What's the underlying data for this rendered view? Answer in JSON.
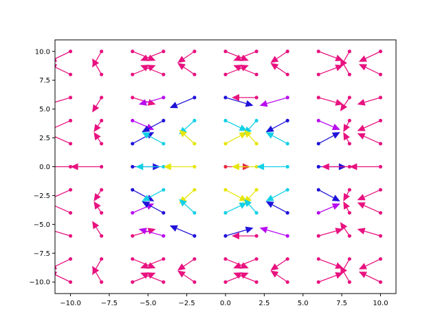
{
  "chart_data": {
    "type": "scatter",
    "title": "",
    "xlabel": "",
    "ylabel": "",
    "xlim": [
      -11,
      11
    ],
    "ylim": [
      -11,
      11
    ],
    "grid": false,
    "xticks": [
      -10.0,
      -7.5,
      -5.0,
      -2.5,
      0.0,
      2.5,
      5.0,
      7.5,
      10.0
    ],
    "yticks": [
      -10.0,
      -7.5,
      -5.0,
      -2.5,
      0.0,
      2.5,
      5.0,
      7.5,
      10.0
    ],
    "xtick_labels": [
      "−10.0",
      "−7.5",
      "−5.0",
      "−2.5",
      "0.0",
      "2.5",
      "5.0",
      "7.5",
      "10.0"
    ],
    "ytick_labels": [
      "−10.0",
      "−7.5",
      "−5.0",
      "−2.5",
      "0.0",
      "2.5",
      "5.0",
      "7.5",
      "10.0"
    ],
    "grid_x": [
      -10,
      -8,
      -6,
      -4,
      -2,
      0,
      2,
      4,
      6,
      8,
      10
    ],
    "grid_y": [
      -10,
      -8,
      -6,
      -4,
      -2,
      0,
      2,
      4,
      6,
      8,
      10
    ],
    "colors": {
      "magenta": "#e8117f",
      "purple": "#b80cf0",
      "blue": "#1f12d9",
      "cyan": "#12d0e6",
      "yellow": "#e6e60a",
      "red": "#e8283c"
    },
    "quiver": [
      {
        "x": -10,
        "y": 10,
        "u": -1.4,
        "v": -0.9,
        "c": "magenta"
      },
      {
        "x": -10,
        "y": 8,
        "u": -1.4,
        "v": 0.9,
        "c": "magenta"
      },
      {
        "x": -8,
        "y": 10,
        "u": -0.6,
        "v": -1.4,
        "c": "magenta"
      },
      {
        "x": -8,
        "y": 8,
        "u": -0.6,
        "v": 1.4,
        "c": "magenta"
      },
      {
        "x": -6,
        "y": 10,
        "u": 1.5,
        "v": -0.8,
        "c": "magenta"
      },
      {
        "x": -6,
        "y": 8,
        "u": 1.5,
        "v": 0.8,
        "c": "magenta"
      },
      {
        "x": -4,
        "y": 10,
        "u": -1.5,
        "v": -0.8,
        "c": "magenta"
      },
      {
        "x": -4,
        "y": 8,
        "u": -1.5,
        "v": 0.8,
        "c": "magenta"
      },
      {
        "x": -2,
        "y": 10,
        "u": -1.1,
        "v": -1.0,
        "c": "magenta"
      },
      {
        "x": -2,
        "y": 8,
        "u": -1.1,
        "v": 1.0,
        "c": "magenta"
      },
      {
        "x": 0,
        "y": 10,
        "u": 1.5,
        "v": -0.8,
        "c": "magenta"
      },
      {
        "x": 0,
        "y": 8,
        "u": 1.5,
        "v": 0.8,
        "c": "magenta"
      },
      {
        "x": 2,
        "y": 10,
        "u": -1.5,
        "v": -0.8,
        "c": "magenta"
      },
      {
        "x": 2,
        "y": 8,
        "u": -1.5,
        "v": 0.8,
        "c": "magenta"
      },
      {
        "x": 4,
        "y": 10,
        "u": -1.1,
        "v": -1.0,
        "c": "magenta"
      },
      {
        "x": 4,
        "y": 8,
        "u": -1.1,
        "v": 1.0,
        "c": "magenta"
      },
      {
        "x": 6,
        "y": 10,
        "u": 1.6,
        "v": -0.8,
        "c": "magenta"
      },
      {
        "x": 6,
        "y": 8,
        "u": 1.6,
        "v": 0.8,
        "c": "magenta"
      },
      {
        "x": 8,
        "y": 10,
        "u": -0.6,
        "v": -1.4,
        "c": "magenta"
      },
      {
        "x": 8,
        "y": 8,
        "u": -0.6,
        "v": 1.4,
        "c": "magenta"
      },
      {
        "x": 10,
        "y": 10,
        "u": -1.4,
        "v": -0.9,
        "c": "magenta"
      },
      {
        "x": 10,
        "y": 8,
        "u": -1.4,
        "v": 0.9,
        "c": "magenta"
      },
      {
        "x": -10,
        "y": 6,
        "u": -1.5,
        "v": -0.6,
        "c": "magenta"
      },
      {
        "x": -8,
        "y": 6,
        "u": -0.6,
        "v": -1.3,
        "c": "magenta"
      },
      {
        "x": -6,
        "y": 6,
        "u": 1.5,
        "v": -0.6,
        "c": "magenta"
      },
      {
        "x": -4,
        "y": 6,
        "u": -1.6,
        "v": -0.6,
        "c": "purple"
      },
      {
        "x": -2,
        "y": 6,
        "u": -1.6,
        "v": -0.9,
        "c": "blue"
      },
      {
        "x": 0,
        "y": 6,
        "u": 1.8,
        "v": -0.7,
        "c": "blue"
      },
      {
        "x": 2,
        "y": 6,
        "u": -1.6,
        "v": 0.0,
        "c": "magenta"
      },
      {
        "x": 4,
        "y": 6,
        "u": -1.8,
        "v": -0.7,
        "c": "purple"
      },
      {
        "x": 6,
        "y": 6,
        "u": 1.6,
        "v": -0.6,
        "c": "magenta"
      },
      {
        "x": 8,
        "y": 6,
        "u": -0.6,
        "v": -1.2,
        "c": "magenta"
      },
      {
        "x": 10,
        "y": 6,
        "u": -1.5,
        "v": -0.6,
        "c": "magenta"
      },
      {
        "x": -10,
        "y": 4,
        "u": -1.5,
        "v": -0.9,
        "c": "magenta"
      },
      {
        "x": -10,
        "y": 2,
        "u": -1.5,
        "v": 0.9,
        "c": "magenta"
      },
      {
        "x": -8,
        "y": 4,
        "u": -0.5,
        "v": -1.0,
        "c": "magenta"
      },
      {
        "x": -8,
        "y": 2,
        "u": -0.5,
        "v": 1.0,
        "c": "magenta"
      },
      {
        "x": -6,
        "y": 4,
        "u": 1.4,
        "v": -0.8,
        "c": "purple"
      },
      {
        "x": -6,
        "y": 2,
        "u": 1.4,
        "v": 1.0,
        "c": "blue"
      },
      {
        "x": -4,
        "y": 4,
        "u": -1.4,
        "v": -1.0,
        "c": "blue"
      },
      {
        "x": -4,
        "y": 2,
        "u": -1.4,
        "v": 1.0,
        "c": "cyan"
      },
      {
        "x": -2,
        "y": 4,
        "u": -1.0,
        "v": -1.2,
        "c": "cyan"
      },
      {
        "x": -2,
        "y": 2,
        "u": -1.0,
        "v": 1.2,
        "c": "yellow"
      },
      {
        "x": 0,
        "y": 4,
        "u": 1.4,
        "v": -0.9,
        "c": "cyan"
      },
      {
        "x": 0,
        "y": 2,
        "u": 1.4,
        "v": 1.0,
        "c": "yellow"
      },
      {
        "x": 2,
        "y": 4,
        "u": -0.8,
        "v": -1.2,
        "c": "cyan"
      },
      {
        "x": 2,
        "y": 2,
        "u": -0.8,
        "v": 1.2,
        "c": "yellow"
      },
      {
        "x": 4,
        "y": 4,
        "u": -1.4,
        "v": -1.0,
        "c": "blue"
      },
      {
        "x": 4,
        "y": 2,
        "u": -1.4,
        "v": 1.0,
        "c": "cyan"
      },
      {
        "x": 6,
        "y": 4,
        "u": 1.4,
        "v": -0.8,
        "c": "purple"
      },
      {
        "x": 6,
        "y": 2,
        "u": 1.4,
        "v": 1.0,
        "c": "blue"
      },
      {
        "x": 8,
        "y": 4,
        "u": -0.4,
        "v": -1.0,
        "c": "magenta"
      },
      {
        "x": 8,
        "y": 2,
        "u": -0.4,
        "v": 1.0,
        "c": "magenta"
      },
      {
        "x": 10,
        "y": 4,
        "u": -1.5,
        "v": -0.9,
        "c": "magenta"
      },
      {
        "x": 10,
        "y": 2,
        "u": -1.5,
        "v": 0.9,
        "c": "magenta"
      },
      {
        "x": -10,
        "y": 0,
        "u": -2.0,
        "v": 0.0,
        "c": "magenta"
      },
      {
        "x": -8,
        "y": 0,
        "u": -2.0,
        "v": 0.0,
        "c": "magenta"
      },
      {
        "x": -6,
        "y": 0,
        "u": 1.8,
        "v": 0.0,
        "c": "blue"
      },
      {
        "x": -4,
        "y": 0,
        "u": -1.8,
        "v": 0.0,
        "c": "cyan"
      },
      {
        "x": -2,
        "y": 0,
        "u": -2.0,
        "v": 0.0,
        "c": "yellow"
      },
      {
        "x": 0,
        "y": 0,
        "u": 1.6,
        "v": 0.0,
        "c": "red"
      },
      {
        "x": 2,
        "y": 0,
        "u": -1.6,
        "v": 0.0,
        "c": "yellow"
      },
      {
        "x": 4,
        "y": 0,
        "u": -2.0,
        "v": 0.0,
        "c": "cyan"
      },
      {
        "x": 6,
        "y": 0,
        "u": 1.8,
        "v": 0.0,
        "c": "blue"
      },
      {
        "x": 8,
        "y": 0,
        "u": -1.8,
        "v": 0.0,
        "c": "magenta"
      },
      {
        "x": 10,
        "y": 0,
        "u": -2.0,
        "v": 0.0,
        "c": "magenta"
      },
      {
        "x": -10,
        "y": -2,
        "u": -1.5,
        "v": -0.9,
        "c": "magenta"
      },
      {
        "x": -10,
        "y": -4,
        "u": -1.5,
        "v": 0.9,
        "c": "magenta"
      },
      {
        "x": -8,
        "y": -2,
        "u": -0.5,
        "v": -1.0,
        "c": "magenta"
      },
      {
        "x": -8,
        "y": -4,
        "u": -0.5,
        "v": 1.0,
        "c": "magenta"
      },
      {
        "x": -6,
        "y": -2,
        "u": 1.4,
        "v": -1.0,
        "c": "blue"
      },
      {
        "x": -6,
        "y": -4,
        "u": 1.4,
        "v": 0.8,
        "c": "purple"
      },
      {
        "x": -4,
        "y": -2,
        "u": -1.4,
        "v": -1.0,
        "c": "cyan"
      },
      {
        "x": -4,
        "y": -4,
        "u": -1.4,
        "v": 1.0,
        "c": "blue"
      },
      {
        "x": -2,
        "y": -2,
        "u": -1.0,
        "v": -1.2,
        "c": "yellow"
      },
      {
        "x": -2,
        "y": -4,
        "u": -1.0,
        "v": 1.2,
        "c": "cyan"
      },
      {
        "x": 0,
        "y": -2,
        "u": 1.4,
        "v": -1.0,
        "c": "yellow"
      },
      {
        "x": 0,
        "y": -4,
        "u": 1.4,
        "v": 0.9,
        "c": "cyan"
      },
      {
        "x": 2,
        "y": -2,
        "u": -0.8,
        "v": -1.2,
        "c": "yellow"
      },
      {
        "x": 2,
        "y": -4,
        "u": -0.8,
        "v": 1.2,
        "c": "cyan"
      },
      {
        "x": 4,
        "y": -2,
        "u": -1.4,
        "v": -1.0,
        "c": "cyan"
      },
      {
        "x": 4,
        "y": -4,
        "u": -1.4,
        "v": 1.0,
        "c": "blue"
      },
      {
        "x": 6,
        "y": -2,
        "u": 1.4,
        "v": -1.0,
        "c": "blue"
      },
      {
        "x": 6,
        "y": -4,
        "u": 1.4,
        "v": 0.8,
        "c": "purple"
      },
      {
        "x": 8,
        "y": -2,
        "u": -0.4,
        "v": -1.0,
        "c": "magenta"
      },
      {
        "x": 8,
        "y": -4,
        "u": -0.4,
        "v": 1.0,
        "c": "magenta"
      },
      {
        "x": 10,
        "y": -2,
        "u": -1.5,
        "v": -0.9,
        "c": "magenta"
      },
      {
        "x": 10,
        "y": -4,
        "u": -1.5,
        "v": 0.9,
        "c": "magenta"
      },
      {
        "x": -10,
        "y": -6,
        "u": -1.5,
        "v": 0.6,
        "c": "magenta"
      },
      {
        "x": -8,
        "y": -6,
        "u": -0.6,
        "v": 1.3,
        "c": "magenta"
      },
      {
        "x": -6,
        "y": -6,
        "u": 1.5,
        "v": 0.6,
        "c": "magenta"
      },
      {
        "x": -4,
        "y": -6,
        "u": -1.6,
        "v": 0.6,
        "c": "purple"
      },
      {
        "x": -2,
        "y": -6,
        "u": -1.6,
        "v": 0.9,
        "c": "blue"
      },
      {
        "x": 0,
        "y": -6,
        "u": 1.8,
        "v": 0.7,
        "c": "blue"
      },
      {
        "x": 2,
        "y": -6,
        "u": -1.6,
        "v": 0.0,
        "c": "magenta"
      },
      {
        "x": 4,
        "y": -6,
        "u": -1.8,
        "v": 0.7,
        "c": "purple"
      },
      {
        "x": 6,
        "y": -6,
        "u": 1.6,
        "v": 0.6,
        "c": "magenta"
      },
      {
        "x": 8,
        "y": -6,
        "u": -0.6,
        "v": 1.2,
        "c": "magenta"
      },
      {
        "x": 10,
        "y": -6,
        "u": -1.5,
        "v": 0.6,
        "c": "magenta"
      },
      {
        "x": -10,
        "y": -8,
        "u": -1.4,
        "v": -0.9,
        "c": "magenta"
      },
      {
        "x": -10,
        "y": -10,
        "u": -1.4,
        "v": 0.9,
        "c": "magenta"
      },
      {
        "x": -8,
        "y": -8,
        "u": -0.6,
        "v": -1.4,
        "c": "magenta"
      },
      {
        "x": -8,
        "y": -10,
        "u": -0.6,
        "v": 1.4,
        "c": "magenta"
      },
      {
        "x": -6,
        "y": -8,
        "u": 1.5,
        "v": -0.8,
        "c": "magenta"
      },
      {
        "x": -6,
        "y": -10,
        "u": 1.5,
        "v": 0.8,
        "c": "magenta"
      },
      {
        "x": -4,
        "y": -8,
        "u": -1.5,
        "v": -0.8,
        "c": "magenta"
      },
      {
        "x": -4,
        "y": -10,
        "u": -1.5,
        "v": 0.8,
        "c": "magenta"
      },
      {
        "x": -2,
        "y": -8,
        "u": -1.1,
        "v": -1.0,
        "c": "magenta"
      },
      {
        "x": -2,
        "y": -10,
        "u": -1.1,
        "v": 1.0,
        "c": "magenta"
      },
      {
        "x": 0,
        "y": -8,
        "u": 1.5,
        "v": -0.8,
        "c": "magenta"
      },
      {
        "x": 0,
        "y": -10,
        "u": 1.5,
        "v": 0.8,
        "c": "magenta"
      },
      {
        "x": 2,
        "y": -8,
        "u": -1.5,
        "v": -0.8,
        "c": "magenta"
      },
      {
        "x": 2,
        "y": -10,
        "u": -1.5,
        "v": 0.8,
        "c": "magenta"
      },
      {
        "x": 4,
        "y": -8,
        "u": -1.1,
        "v": -1.0,
        "c": "magenta"
      },
      {
        "x": 4,
        "y": -10,
        "u": -1.1,
        "v": 1.0,
        "c": "magenta"
      },
      {
        "x": 6,
        "y": -8,
        "u": 1.6,
        "v": -0.8,
        "c": "magenta"
      },
      {
        "x": 6,
        "y": -10,
        "u": 1.6,
        "v": 0.8,
        "c": "magenta"
      },
      {
        "x": 8,
        "y": -8,
        "u": -0.6,
        "v": -1.4,
        "c": "magenta"
      },
      {
        "x": 8,
        "y": -10,
        "u": -0.6,
        "v": 1.4,
        "c": "magenta"
      },
      {
        "x": 10,
        "y": -8,
        "u": -1.4,
        "v": -0.9,
        "c": "magenta"
      },
      {
        "x": 10,
        "y": -10,
        "u": -1.4,
        "v": 0.9,
        "c": "magenta"
      }
    ]
  }
}
